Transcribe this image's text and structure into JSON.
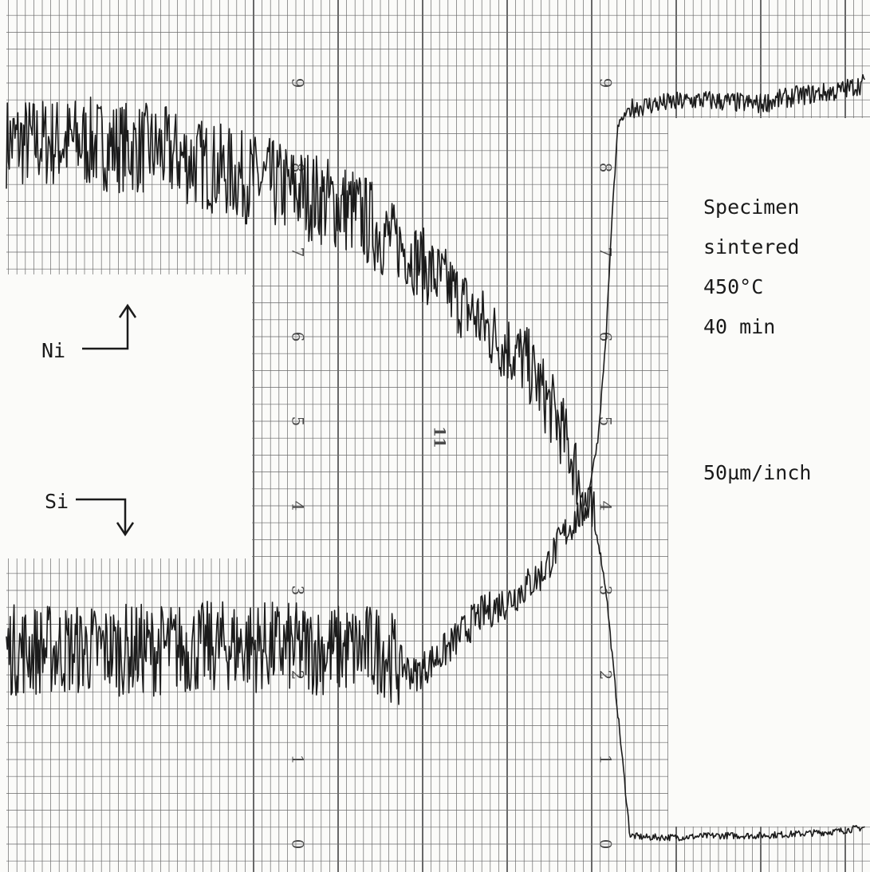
{
  "chart_data": {
    "type": "line",
    "title": "",
    "xlabel": "",
    "ylabel": "",
    "grid": true,
    "ylim": [
      0,
      10
    ],
    "xlim": [
      0,
      1091
    ],
    "scale_label": "50µm/inch",
    "conditions": [
      "Specimen",
      "sintered",
      "450°C",
      "40 min"
    ],
    "chart_id": "11",
    "grid_numbers": [
      "0",
      "1",
      "2",
      "3",
      "4",
      "5",
      "6",
      "7",
      "8",
      "9"
    ],
    "series": [
      {
        "name": "Ni",
        "arrow": "up",
        "x": [
          8,
          100,
          200,
          300,
          380,
          440,
          500,
          560,
          620,
          660,
          700,
          720,
          735,
          742,
          750,
          760,
          770,
          790,
          810,
          850,
          900,
          950,
          1000,
          1050,
          1085
        ],
        "values": [
          8.3,
          8.3,
          8.2,
          7.9,
          7.7,
          7.5,
          7.1,
          6.6,
          6.0,
          5.7,
          5.0,
          4.5,
          4.0,
          3.8,
          3.6,
          3.0,
          2.0,
          0.1,
          0.08,
          0.08,
          0.1,
          0.1,
          0.12,
          0.15,
          0.2
        ]
      },
      {
        "name": "Si",
        "arrow": "down",
        "x": [
          8,
          100,
          200,
          300,
          400,
          480,
          520,
          560,
          600,
          640,
          680,
          710,
          735,
          750,
          760,
          768,
          775,
          790,
          820,
          880,
          950,
          1000,
          1050,
          1085
        ],
        "values": [
          2.3,
          2.3,
          2.3,
          2.35,
          2.3,
          2.3,
          2.0,
          2.3,
          2.7,
          2.9,
          3.2,
          3.7,
          4.0,
          4.8,
          6.0,
          7.5,
          8.5,
          8.7,
          8.75,
          8.8,
          8.75,
          8.85,
          8.9,
          9.0
        ]
      }
    ]
  }
}
